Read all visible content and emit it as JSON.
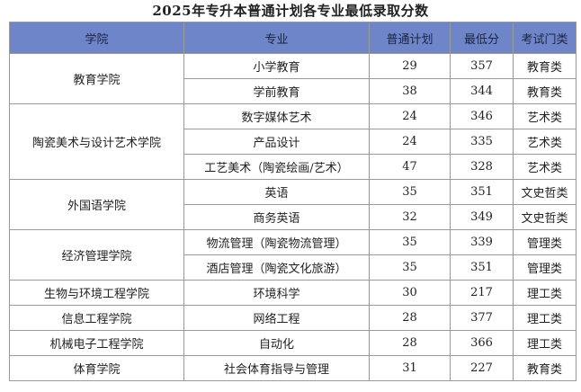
{
  "title": "2025年专升本普通计划各专业最低录取分数",
  "headers": [
    "学院",
    "专业",
    "普通计划",
    "最低分",
    "考试门类"
  ],
  "rows": [
    {
      "college": "教育学院",
      "span": 2,
      "major": "小学教育",
      "plan": "29",
      "min": "357",
      "category": "教育类"
    },
    {
      "college": "",
      "span": 0,
      "major": "学前教育",
      "plan": "38",
      "min": "344",
      "category": "教育类"
    },
    {
      "college": "陶瓷美术与设计艺术学院",
      "span": 3,
      "major": "数字媒体艺术",
      "plan": "24",
      "min": "346",
      "category": "艺术类"
    },
    {
      "college": "",
      "span": 0,
      "major": "产品设计",
      "plan": "24",
      "min": "335",
      "category": "艺术类"
    },
    {
      "college": "",
      "span": 0,
      "major": "工艺美术（陶瓷绘画/艺术）",
      "plan": "47",
      "min": "328",
      "category": "艺术类"
    },
    {
      "college": "外国语学院",
      "span": 2,
      "major": "英语",
      "plan": "35",
      "min": "351",
      "category": "文史哲类"
    },
    {
      "college": "",
      "span": 0,
      "major": "商务英语",
      "plan": "32",
      "min": "349",
      "category": "文史哲类"
    },
    {
      "college": "经济管理学院",
      "span": 2,
      "major": "物流管理（陶瓷物流管理）",
      "plan": "35",
      "min": "339",
      "category": "管理类"
    },
    {
      "college": "",
      "span": 0,
      "major": "酒店管理（陶瓷文化旅游）",
      "plan": "35",
      "min": "351",
      "category": "管理类"
    },
    {
      "college": "生物与环境工程学院",
      "span": 1,
      "major": "环境科学",
      "plan": "30",
      "min": "217",
      "category": "理工类"
    },
    {
      "college": "信息工程学院",
      "span": 1,
      "major": "网络工程",
      "plan": "28",
      "min": "377",
      "category": "理工类"
    },
    {
      "college": "机械电子工程学院",
      "span": 1,
      "major": "自动化",
      "plan": "28",
      "min": "366",
      "category": "理工类"
    },
    {
      "college": "体育学院",
      "span": 1,
      "major": "社会体育指导与管理",
      "plan": "31",
      "min": "227",
      "category": "教育类"
    }
  ]
}
